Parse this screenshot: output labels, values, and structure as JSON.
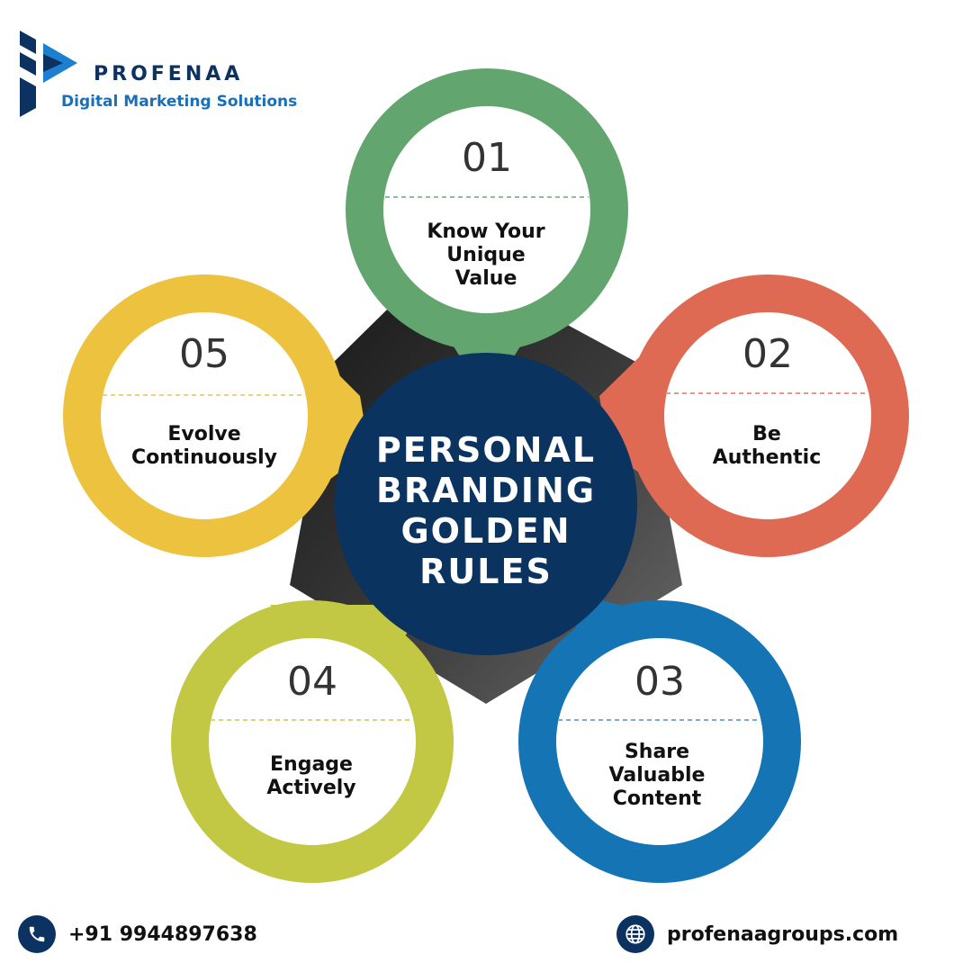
{
  "brand": {
    "name": "PROFENAA",
    "tagline": "Digital Marketing Solutions"
  },
  "center": {
    "title_lines": [
      "PERSONAL",
      "BRANDING",
      "GOLDEN",
      "RULES"
    ]
  },
  "rules": [
    {
      "number": "01",
      "lines": [
        "Know Your",
        "Unique",
        "Value"
      ],
      "color": "#62a56e"
    },
    {
      "number": "02",
      "lines": [
        "Be",
        "Authentic"
      ],
      "color": "#de6a54"
    },
    {
      "number": "03",
      "lines": [
        "Share",
        "Valuable",
        "Content"
      ],
      "color": "#1574b3"
    },
    {
      "number": "04",
      "lines": [
        "Engage",
        "Actively"
      ],
      "color": "#c2c843"
    },
    {
      "number": "05",
      "lines": [
        "Evolve",
        "Continuously"
      ],
      "color": "#ecc23f"
    }
  ],
  "contact": {
    "phone": "+91 9944897638",
    "website": "profenaagroups.com",
    "phone_icon": "phone-icon",
    "website_icon": "globe-icon"
  },
  "colors": {
    "navy": "#0b3260",
    "center_circle": "#0a3360",
    "pentagon": "#2a2a2a",
    "brand_blue": "#1a6fb8"
  }
}
